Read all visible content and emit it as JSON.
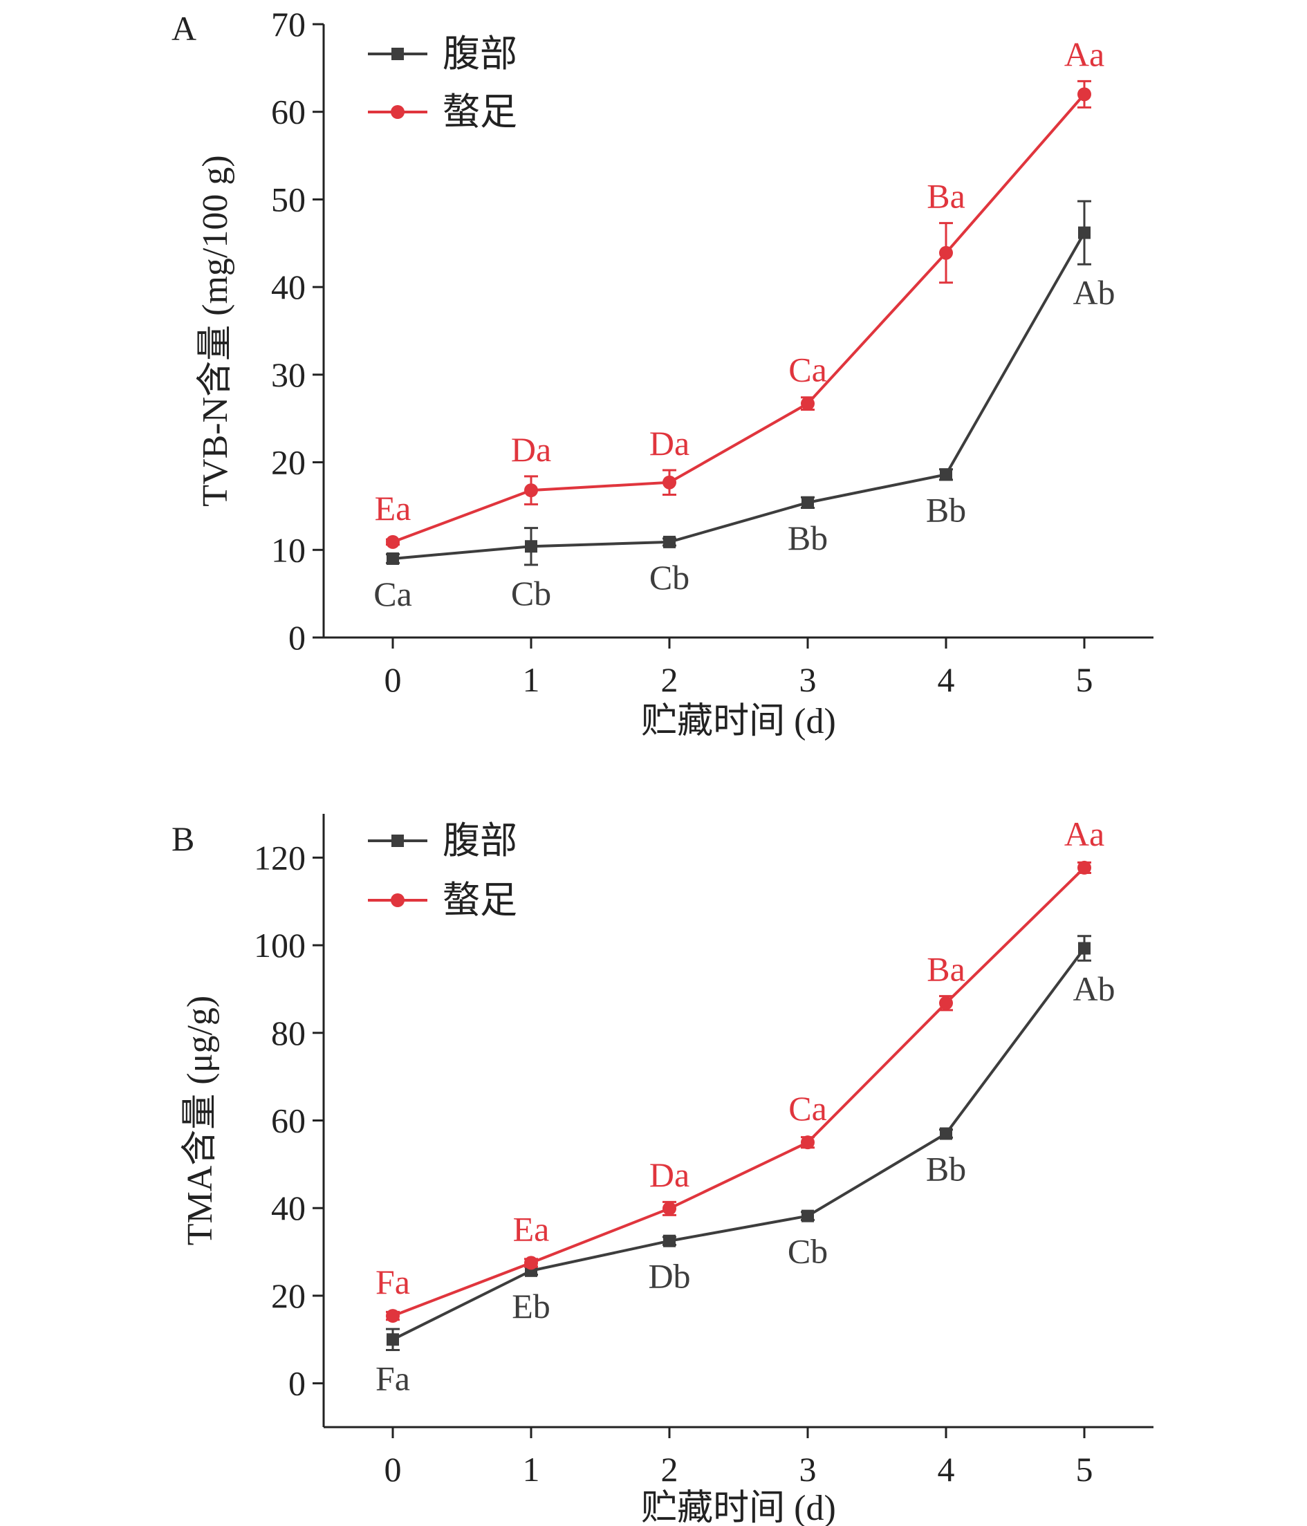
{
  "colors": {
    "belly": "#3d3d3d",
    "claw": "#e0353d",
    "axis": "#222222"
  },
  "chart_data": [
    {
      "panel_label": "A",
      "type": "line",
      "xlabel": "贮藏时间 (d)",
      "ylabel": "TVB-N含量 (mg/100 g)",
      "xlim": [
        -0.5,
        5.5
      ],
      "ylim": [
        0,
        70
      ],
      "x_ticks": [
        0,
        1,
        2,
        3,
        4,
        5
      ],
      "y_ticks": [
        0,
        10,
        20,
        30,
        40,
        50,
        60,
        70
      ],
      "legend_position": "top-left",
      "grid": false,
      "series": [
        {
          "name": "腹部",
          "key": "belly",
          "marker": "square",
          "x": [
            0,
            1,
            2,
            3,
            4,
            5
          ],
          "y": [
            9.0,
            10.4,
            10.9,
            15.4,
            18.6,
            46.2
          ],
          "error": [
            0.5,
            2.1,
            0.4,
            0.6,
            0.6,
            3.6
          ],
          "letters": [
            "Ca",
            "Cb",
            "Cb",
            "Bb",
            "Bb",
            "Ab"
          ],
          "label_side": "below"
        },
        {
          "name": "螯足",
          "key": "claw",
          "marker": "circle",
          "x": [
            0,
            1,
            2,
            3,
            4,
            5
          ],
          "y": [
            10.9,
            16.8,
            17.7,
            26.7,
            43.9,
            62.0
          ],
          "error": [
            0.3,
            1.6,
            1.4,
            0.7,
            3.4,
            1.5
          ],
          "letters": [
            "Ea",
            "Da",
            "Da",
            "Ca",
            "Ba",
            "Aa"
          ],
          "label_side": "above"
        }
      ]
    },
    {
      "panel_label": "B",
      "type": "line",
      "xlabel": "贮藏时间 (d)",
      "ylabel": "TMA含量 (μg/g)",
      "xlim": [
        -0.5,
        5.5
      ],
      "ylim": [
        -10,
        130
      ],
      "x_ticks": [
        0,
        1,
        2,
        3,
        4,
        5
      ],
      "y_ticks": [
        0,
        20,
        40,
        60,
        80,
        100,
        120
      ],
      "legend_position": "top-left",
      "grid": false,
      "series": [
        {
          "name": "腹部",
          "key": "belly",
          "marker": "square",
          "x": [
            0,
            1,
            2,
            3,
            4,
            5
          ],
          "y": [
            10.0,
            25.7,
            32.5,
            38.2,
            57.0,
            99.3
          ],
          "error": [
            2.4,
            0.9,
            0.9,
            0.9,
            0.9,
            2.8
          ],
          "letters": [
            "Fa",
            "Eb",
            "Db",
            "Cb",
            "Bb",
            "Ab"
          ],
          "label_side": "below"
        },
        {
          "name": "螯足",
          "key": "claw",
          "marker": "circle",
          "x": [
            0,
            1,
            2,
            3,
            4,
            5
          ],
          "y": [
            15.4,
            27.5,
            39.9,
            55.0,
            86.8,
            117.7
          ],
          "error": [
            0.9,
            0.9,
            1.5,
            1.2,
            1.6,
            1.2
          ],
          "letters": [
            "Fa",
            "Ea",
            "Da",
            "Ca",
            "Ba",
            "Aa"
          ],
          "label_side": "above"
        }
      ]
    }
  ]
}
